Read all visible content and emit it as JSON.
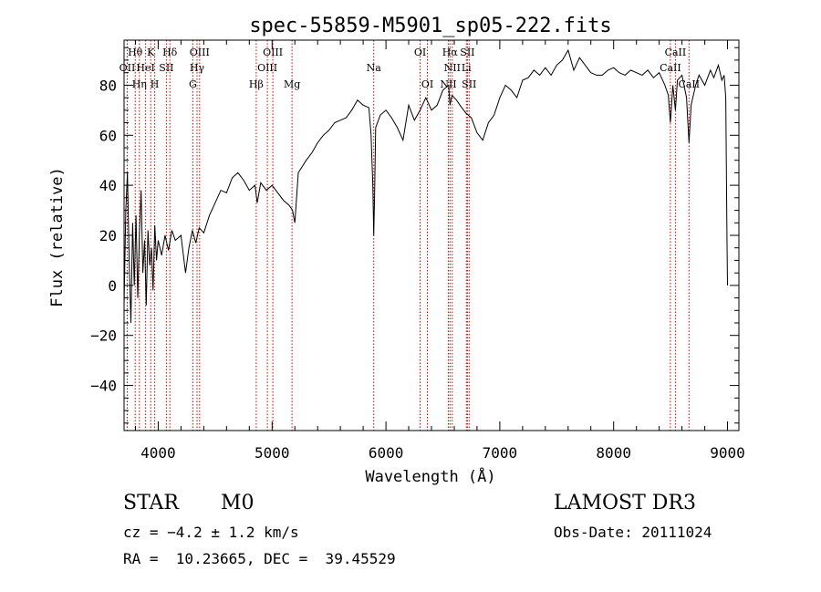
{
  "chart_data": {
    "type": "line",
    "title": "spec-55859-M5901_sp05-222.fits",
    "xlabel": "Wavelength (Å)",
    "ylabel": "Flux (relative)",
    "xlim": [
      3700,
      9100
    ],
    "ylim": [
      -58,
      98
    ],
    "xticks": [
      4000,
      5000,
      6000,
      7000,
      8000,
      9000
    ],
    "yticks": [
      -40,
      -20,
      0,
      20,
      40,
      60,
      80
    ],
    "xtick_labels": [
      "4000",
      "5000",
      "6000",
      "7000",
      "8000",
      "9000"
    ],
    "ytick_labels": [
      "−40",
      "−20",
      "0",
      "20",
      "40",
      "60",
      "80"
    ],
    "line_color": "#000000",
    "marker_color": "#cc0000",
    "series": [
      {
        "name": "flux",
        "points": [
          [
            3700,
            -8
          ],
          [
            3715,
            30
          ],
          [
            3730,
            45
          ],
          [
            3745,
            10
          ],
          [
            3760,
            -15
          ],
          [
            3775,
            25
          ],
          [
            3790,
            0
          ],
          [
            3805,
            28
          ],
          [
            3820,
            -5
          ],
          [
            3835,
            20
          ],
          [
            3850,
            38
          ],
          [
            3865,
            5
          ],
          [
            3880,
            18
          ],
          [
            3895,
            -8
          ],
          [
            3910,
            22
          ],
          [
            3925,
            8
          ],
          [
            3940,
            15
          ],
          [
            3955,
            -2
          ],
          [
            3970,
            24
          ],
          [
            3985,
            10
          ],
          [
            4000,
            18
          ],
          [
            4030,
            12
          ],
          [
            4060,
            20
          ],
          [
            4090,
            14
          ],
          [
            4120,
            22
          ],
          [
            4150,
            18
          ],
          [
            4200,
            20
          ],
          [
            4240,
            5
          ],
          [
            4270,
            15
          ],
          [
            4300,
            22
          ],
          [
            4330,
            17
          ],
          [
            4360,
            23
          ],
          [
            4400,
            21
          ],
          [
            4450,
            28
          ],
          [
            4500,
            33
          ],
          [
            4550,
            38
          ],
          [
            4600,
            37
          ],
          [
            4650,
            43
          ],
          [
            4700,
            45
          ],
          [
            4750,
            42
          ],
          [
            4800,
            38
          ],
          [
            4850,
            40
          ],
          [
            4870,
            33
          ],
          [
            4900,
            41
          ],
          [
            4950,
            38
          ],
          [
            5000,
            40
          ],
          [
            5050,
            37
          ],
          [
            5100,
            34
          ],
          [
            5150,
            32
          ],
          [
            5180,
            30
          ],
          [
            5200,
            25
          ],
          [
            5230,
            45
          ],
          [
            5300,
            50
          ],
          [
            5350,
            53
          ],
          [
            5400,
            57
          ],
          [
            5450,
            60
          ],
          [
            5500,
            62
          ],
          [
            5550,
            65
          ],
          [
            5600,
            66
          ],
          [
            5650,
            67
          ],
          [
            5700,
            70
          ],
          [
            5750,
            74
          ],
          [
            5800,
            72
          ],
          [
            5850,
            71
          ],
          [
            5870,
            60
          ],
          [
            5885,
            40
          ],
          [
            5893,
            20
          ],
          [
            5900,
            35
          ],
          [
            5910,
            63
          ],
          [
            5950,
            68
          ],
          [
            6000,
            70
          ],
          [
            6050,
            67
          ],
          [
            6100,
            63
          ],
          [
            6150,
            58
          ],
          [
            6200,
            72
          ],
          [
            6250,
            66
          ],
          [
            6300,
            70
          ],
          [
            6350,
            75
          ],
          [
            6400,
            70
          ],
          [
            6450,
            72
          ],
          [
            6500,
            78
          ],
          [
            6550,
            80
          ],
          [
            6563,
            72
          ],
          [
            6580,
            76
          ],
          [
            6620,
            74
          ],
          [
            6650,
            72
          ],
          [
            6700,
            69
          ],
          [
            6750,
            67
          ],
          [
            6800,
            61
          ],
          [
            6850,
            58
          ],
          [
            6900,
            65
          ],
          [
            6950,
            68
          ],
          [
            7000,
            75
          ],
          [
            7050,
            80
          ],
          [
            7100,
            78
          ],
          [
            7150,
            75
          ],
          [
            7200,
            82
          ],
          [
            7250,
            83
          ],
          [
            7300,
            86
          ],
          [
            7350,
            84
          ],
          [
            7400,
            87
          ],
          [
            7450,
            84
          ],
          [
            7500,
            88
          ],
          [
            7550,
            90
          ],
          [
            7600,
            94
          ],
          [
            7650,
            86
          ],
          [
            7700,
            91
          ],
          [
            7750,
            88
          ],
          [
            7800,
            85
          ],
          [
            7850,
            84
          ],
          [
            7900,
            84
          ],
          [
            7950,
            86
          ],
          [
            8000,
            87
          ],
          [
            8050,
            85
          ],
          [
            8100,
            84
          ],
          [
            8150,
            86
          ],
          [
            8200,
            85
          ],
          [
            8250,
            84
          ],
          [
            8300,
            86
          ],
          [
            8350,
            83
          ],
          [
            8400,
            85
          ],
          [
            8450,
            80
          ],
          [
            8480,
            76
          ],
          [
            8498,
            65
          ],
          [
            8520,
            80
          ],
          [
            8542,
            70
          ],
          [
            8560,
            82
          ],
          [
            8600,
            84
          ],
          [
            8640,
            75
          ],
          [
            8662,
            57
          ],
          [
            8680,
            72
          ],
          [
            8720,
            80
          ],
          [
            8750,
            84
          ],
          [
            8800,
            80
          ],
          [
            8850,
            86
          ],
          [
            8880,
            83
          ],
          [
            8920,
            88
          ],
          [
            8950,
            82
          ],
          [
            8970,
            84
          ],
          [
            8985,
            75
          ],
          [
            8995,
            20
          ],
          [
            9000,
            0
          ]
        ]
      }
    ],
    "lines": [
      {
        "name": "Hθ",
        "wavelength": 3798
      },
      {
        "name": "Hη",
        "wavelength": 3835
      },
      {
        "name": "OII",
        "wavelength": 3728
      },
      {
        "name": "HeI",
        "wavelength": 3889
      },
      {
        "name": "K",
        "wavelength": 3934
      },
      {
        "name": "H",
        "wavelength": 3969
      },
      {
        "name": "SII",
        "wavelength": 4072
      },
      {
        "name": "Hδ",
        "wavelength": 4102
      },
      {
        "name": "G",
        "wavelength": 4304
      },
      {
        "name": "Hγ",
        "wavelength": 4341
      },
      {
        "name": "OIII",
        "wavelength": 4363
      },
      {
        "name": "Hβ",
        "wavelength": 4861
      },
      {
        "name": "OIII",
        "wavelength": 4959
      },
      {
        "name": "OIII",
        "wavelength": 5007
      },
      {
        "name": "Mg",
        "wavelength": 5175
      },
      {
        "name": "Na",
        "wavelength": 5893
      },
      {
        "name": "OI",
        "wavelength": 6300
      },
      {
        "name": "OI",
        "wavelength": 6364
      },
      {
        "name": "NII",
        "wavelength": 6548
      },
      {
        "name": "Hα",
        "wavelength": 6563
      },
      {
        "name": "NII",
        "wavelength": 6583
      },
      {
        "name": "Li",
        "wavelength": 6707
      },
      {
        "name": "SII",
        "wavelength": 6716
      },
      {
        "name": "SII",
        "wavelength": 6731
      },
      {
        "name": "CaII",
        "wavelength": 8498
      },
      {
        "name": "CaII",
        "wavelength": 8542
      },
      {
        "name": "CaII",
        "wavelength": 8662
      }
    ],
    "line_labels": [
      {
        "text": "Hθ",
        "wavelength": 3798,
        "row": 0
      },
      {
        "text": "K",
        "wavelength": 3934,
        "row": 0
      },
      {
        "text": "Hδ",
        "wavelength": 4102,
        "row": 0
      },
      {
        "text": "OIII",
        "wavelength": 4363,
        "row": 0
      },
      {
        "text": "OIII",
        "wavelength": 5007,
        "row": 0
      },
      {
        "text": "OI",
        "wavelength": 6300,
        "row": 0
      },
      {
        "text": "Hα",
        "wavelength": 6563,
        "row": 0
      },
      {
        "text": "SII",
        "wavelength": 6716,
        "row": 0
      },
      {
        "text": "CaII",
        "wavelength": 8542,
        "row": 0
      },
      {
        "text": "OII",
        "wavelength": 3728,
        "row": 1
      },
      {
        "text": "HeI",
        "wavelength": 3889,
        "row": 1
      },
      {
        "text": "SII",
        "wavelength": 4072,
        "row": 1
      },
      {
        "text": "Hγ",
        "wavelength": 4341,
        "row": 1
      },
      {
        "text": "OIII",
        "wavelength": 4959,
        "row": 1
      },
      {
        "text": "Na",
        "wavelength": 5893,
        "row": 1
      },
      {
        "text": "NII",
        "wavelength": 6583,
        "row": 1
      },
      {
        "text": "Li",
        "wavelength": 6707,
        "row": 1
      },
      {
        "text": "CaII",
        "wavelength": 8498,
        "row": 1
      },
      {
        "text": "Hη",
        "wavelength": 3835,
        "row": 2
      },
      {
        "text": "H",
        "wavelength": 3969,
        "row": 2
      },
      {
        "text": "G",
        "wavelength": 4304,
        "row": 2
      },
      {
        "text": "Hβ",
        "wavelength": 4861,
        "row": 2
      },
      {
        "text": "Mg",
        "wavelength": 5175,
        "row": 2
      },
      {
        "text": "OI",
        "wavelength": 6364,
        "row": 2
      },
      {
        "text": "NII",
        "wavelength": 6548,
        "row": 2
      },
      {
        "text": "SII",
        "wavelength": 6731,
        "row": 2
      },
      {
        "text": "CaII",
        "wavelength": 8662,
        "row": 2
      }
    ]
  },
  "info": {
    "class_label": "STAR",
    "subclass": "M0",
    "survey": "LAMOST DR3",
    "redshift": "cz = −4.2 ± 1.2 km/s",
    "obs_date": "Obs-Date: 20111024",
    "coords": "RA =  10.23665, DEC =  39.45529"
  }
}
